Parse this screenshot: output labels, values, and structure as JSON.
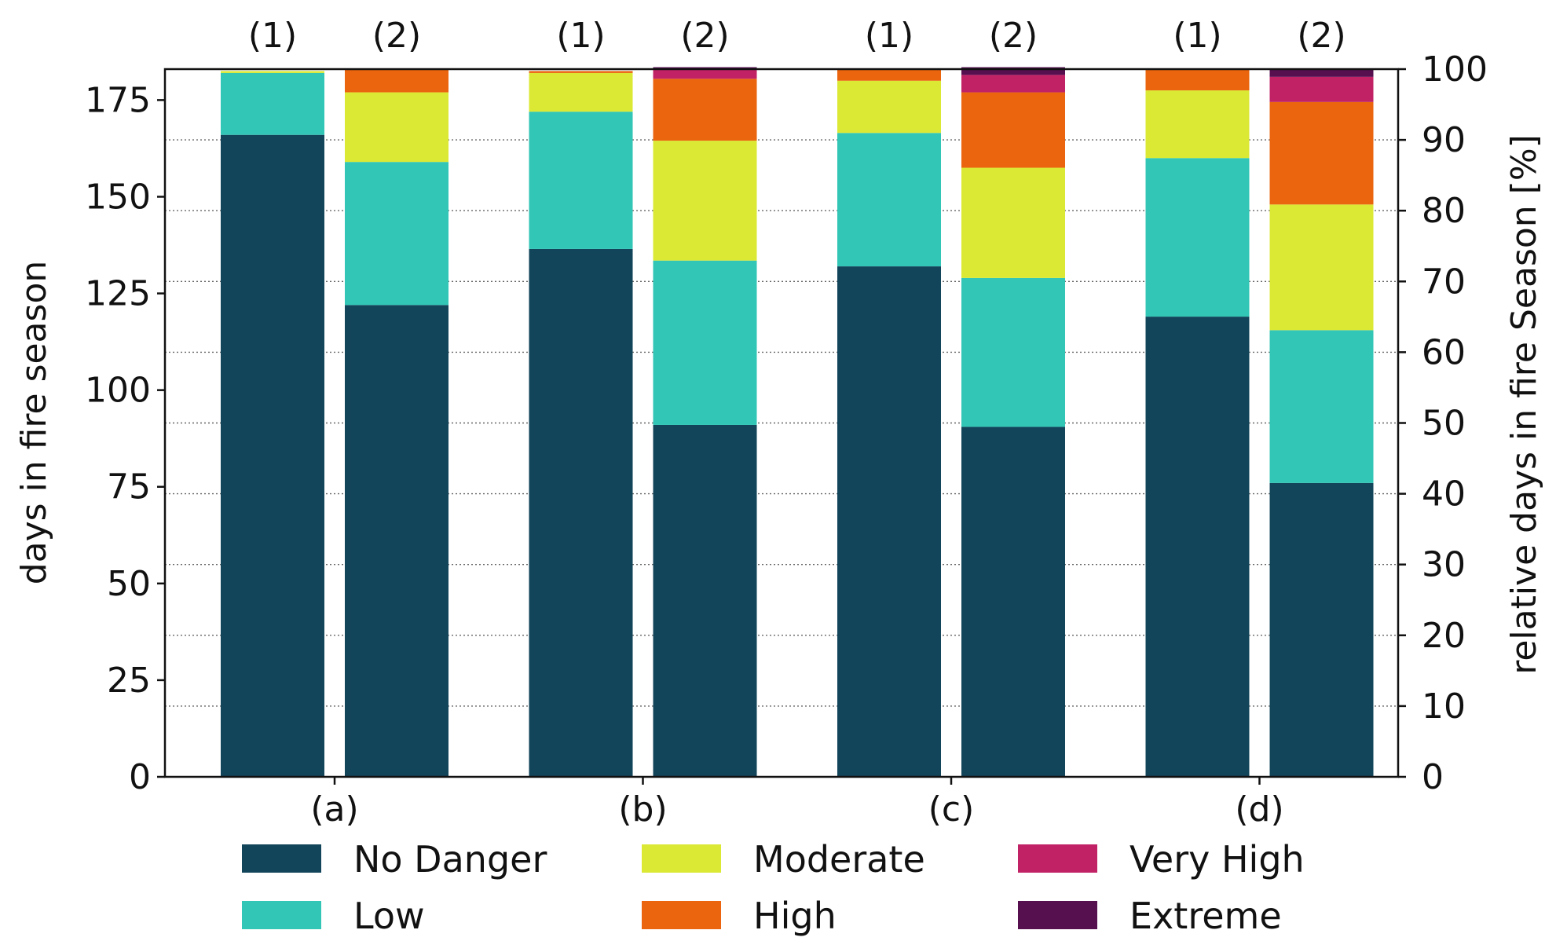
{
  "chart_data": {
    "type": "bar",
    "stacked": true,
    "groups": [
      "(a)",
      "(b)",
      "(c)",
      "(d)"
    ],
    "bar_labels": [
      "(1)",
      "(2)"
    ],
    "ylabel": "days in fire season",
    "y2label": "relative days in fire Season [%]",
    "ylim": [
      0,
      183
    ],
    "y2lim": [
      0,
      100
    ],
    "yticks": [
      0,
      25,
      50,
      75,
      100,
      125,
      150,
      175
    ],
    "y2ticks": [
      0,
      10,
      20,
      30,
      40,
      50,
      60,
      70,
      80,
      90,
      100
    ],
    "grid": "horizontal dotted at right-axis ticks",
    "legend_position": "bottom",
    "legend_ncol": 3,
    "series": [
      {
        "name": "No Danger",
        "color": "#12445a",
        "values": [
          166,
          122,
          136.5,
          91,
          132,
          90.5,
          119,
          76
        ]
      },
      {
        "name": "Low",
        "color": "#31c6b6",
        "values": [
          16,
          37,
          35.5,
          42.5,
          34.5,
          38.5,
          41,
          39.5
        ]
      },
      {
        "name": "Moderate",
        "color": "#dbe935",
        "values": [
          0.5,
          18,
          10,
          31,
          13.5,
          28.5,
          17.5,
          32.5
        ]
      },
      {
        "name": "High",
        "color": "#ea650e",
        "values": [
          0,
          6,
          0.5,
          16,
          3,
          19.5,
          5.5,
          26.5
        ]
      },
      {
        "name": "Very High",
        "color": "#c12266",
        "values": [
          0,
          0,
          0,
          2.5,
          0,
          4.5,
          0,
          6.5
        ]
      },
      {
        "name": "Extreme",
        "color": "#561050",
        "values": [
          0,
          0,
          0,
          0.5,
          0,
          2,
          0,
          2
        ]
      }
    ]
  }
}
